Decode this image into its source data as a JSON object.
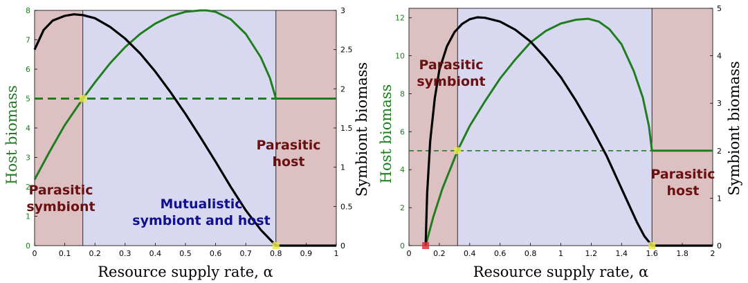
{
  "colors": {
    "host": "#1e7e1e",
    "symbiont": "#000000",
    "parasitic_region": "#dcc0c2",
    "mutualistic_region": "#d8d9f0",
    "region_text_parasitic": "#6a1010",
    "region_text_mutualistic": "#101090",
    "marker_yellow": "#e8e84a",
    "marker_red": "#e03040"
  },
  "chart_data": [
    {
      "type": "line",
      "xlabel": "Resource supply rate, α",
      "ylabel_left": "Host biomass",
      "ylabel_right": "Symbiont biomass",
      "xlim": [
        0,
        1
      ],
      "ylim_left": [
        0,
        8
      ],
      "ylim_right": [
        0,
        3
      ],
      "x_ticks": [
        "0",
        "0.1",
        "0.2",
        "0.3",
        "0.4",
        "0.5",
        "0.6",
        "0.7",
        "0.8",
        "0.9",
        "1"
      ],
      "y_left_ticks": [
        "0",
        "1",
        "2",
        "3",
        "4",
        "5",
        "6",
        "7",
        "8"
      ],
      "y_right_ticks": [
        "0",
        "0.5",
        "1",
        "1.5",
        "2",
        "2.5",
        "3"
      ],
      "regions": [
        {
          "x0": 0,
          "x1": 0.16,
          "kind": "parasitic"
        },
        {
          "x0": 0.16,
          "x1": 0.8,
          "kind": "mutualistic"
        },
        {
          "x0": 0.8,
          "x1": 1,
          "kind": "parasitic"
        }
      ],
      "region_labels": [
        {
          "lines": [
            "Parasitic",
            "symbiont"
          ],
          "kind": "parasitic"
        },
        {
          "lines": [
            "Mutualistic",
            "symbiont and host"
          ],
          "kind": "mutualistic"
        },
        {
          "lines": [
            "Parasitic",
            "host"
          ],
          "kind": "parasitic"
        }
      ],
      "host_series": {
        "axis": "left",
        "x": [
          0,
          0.05,
          0.1,
          0.16,
          0.2,
          0.25,
          0.3,
          0.35,
          0.4,
          0.45,
          0.5,
          0.55,
          0.57,
          0.6,
          0.65,
          0.7,
          0.75,
          0.78,
          0.8,
          0.85,
          0.9,
          0.95,
          1
        ],
        "y": [
          2.25,
          3.2,
          4.1,
          5.0,
          5.55,
          6.2,
          6.75,
          7.2,
          7.55,
          7.8,
          7.95,
          8.0,
          8.0,
          7.95,
          7.7,
          7.2,
          6.4,
          5.7,
          5.0,
          5.0,
          5.0,
          5.0,
          5.0
        ]
      },
      "symbiont_series": {
        "axis": "right",
        "x": [
          0,
          0.03,
          0.06,
          0.1,
          0.13,
          0.16,
          0.2,
          0.25,
          0.3,
          0.35,
          0.4,
          0.45,
          0.5,
          0.55,
          0.6,
          0.65,
          0.7,
          0.75,
          0.8,
          0.85,
          0.9,
          0.95,
          1
        ],
        "y": [
          2.5,
          2.75,
          2.87,
          2.93,
          2.95,
          2.94,
          2.9,
          2.79,
          2.64,
          2.45,
          2.22,
          1.96,
          1.68,
          1.38,
          1.07,
          0.75,
          0.45,
          0.2,
          0,
          0,
          0,
          0,
          0
        ]
      },
      "threshold": {
        "axis": "left",
        "y": 5,
        "x0": 0,
        "x1": 1,
        "style": "thick-dashed"
      },
      "markers": [
        {
          "x": 0.16,
          "y": 5,
          "axis": "left",
          "color": "yellow"
        },
        {
          "x": 0.8,
          "y": 0,
          "axis": "left",
          "color": "yellow"
        }
      ]
    },
    {
      "type": "line",
      "xlabel": "Resource supply rate, α",
      "ylabel_left": "Host biomass",
      "ylabel_right": "Symbiont biomass",
      "xlim": [
        0,
        2
      ],
      "ylim_left": [
        0,
        12.5
      ],
      "ylim_right": [
        0,
        5
      ],
      "x_ticks": [
        "0",
        "0.2",
        "0.4",
        "0.6",
        "0.8",
        "1",
        "1.2",
        "1.4",
        "1.6",
        "1.8",
        "2"
      ],
      "y_left_ticks": [
        "0",
        "2",
        "4",
        "6",
        "8",
        "10",
        "12"
      ],
      "y_right_ticks": [
        "0",
        "1",
        "2",
        "3",
        "4",
        "5"
      ],
      "regions": [
        {
          "x0": 0,
          "x1": 0.32,
          "kind": "parasitic"
        },
        {
          "x0": 0.32,
          "x1": 1.6,
          "kind": "mutualistic"
        },
        {
          "x0": 1.6,
          "x1": 2,
          "kind": "parasitic"
        }
      ],
      "region_labels": [
        {
          "lines": [
            "Parasitic",
            "symbiont"
          ],
          "kind": "parasitic"
        },
        {
          "lines": [
            "Parasitic",
            "host"
          ],
          "kind": "parasitic"
        }
      ],
      "host_series": {
        "axis": "left",
        "x": [
          0.11,
          0.16,
          0.22,
          0.28,
          0.32,
          0.4,
          0.5,
          0.6,
          0.7,
          0.8,
          0.9,
          1.0,
          1.1,
          1.18,
          1.25,
          1.32,
          1.4,
          1.48,
          1.54,
          1.58,
          1.6,
          1.7,
          1.8,
          1.9,
          2.0
        ],
        "y": [
          0,
          1.5,
          3.0,
          4.2,
          5.0,
          6.3,
          7.6,
          8.8,
          9.8,
          10.7,
          11.3,
          11.7,
          11.9,
          11.95,
          11.8,
          11.4,
          10.6,
          9.2,
          7.8,
          6.3,
          5.0,
          5.0,
          5.0,
          5.0,
          5.0
        ]
      },
      "symbiont_series": {
        "axis": "right",
        "x": [
          0.11,
          0.12,
          0.14,
          0.17,
          0.2,
          0.25,
          0.3,
          0.35,
          0.4,
          0.45,
          0.5,
          0.6,
          0.7,
          0.8,
          0.9,
          1.0,
          1.1,
          1.2,
          1.3,
          1.4,
          1.5,
          1.55,
          1.6,
          1.7,
          1.8,
          1.9,
          2.0
        ],
        "y": [
          0,
          1.1,
          2.2,
          3.1,
          3.7,
          4.2,
          4.5,
          4.67,
          4.77,
          4.81,
          4.8,
          4.72,
          4.55,
          4.3,
          3.95,
          3.55,
          3.05,
          2.5,
          1.9,
          1.2,
          0.5,
          0.2,
          0,
          0,
          0,
          0,
          0
        ]
      },
      "threshold": {
        "axis": "left",
        "y": 5,
        "x0": 0,
        "x1": 1.6,
        "style": "thin-dashed"
      },
      "markers": [
        {
          "x": 0.11,
          "y": 0,
          "axis": "left",
          "color": "red"
        },
        {
          "x": 0.32,
          "y": 5,
          "axis": "left",
          "color": "yellow"
        },
        {
          "x": 1.6,
          "y": 0,
          "axis": "left",
          "color": "yellow"
        }
      ]
    }
  ]
}
